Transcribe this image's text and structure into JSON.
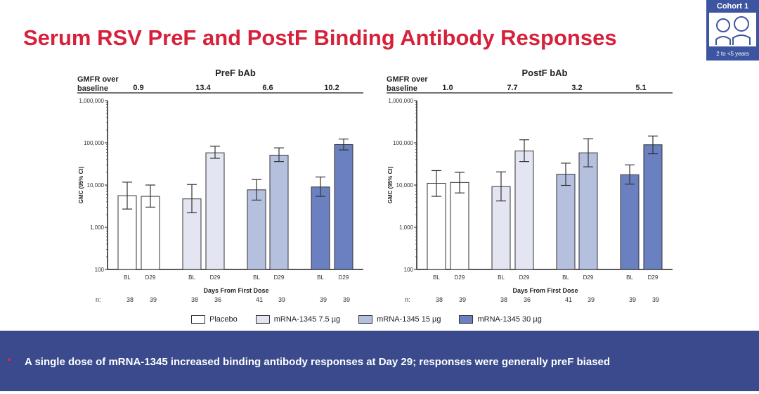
{
  "title": "Serum RSV PreF and PostF Binding Antibody Responses",
  "cohort": {
    "label": "Cohort 1",
    "age": "2 to <5 years",
    "icon": "children-icon"
  },
  "legend": [
    {
      "label": "Placebo",
      "color": "#ffffff"
    },
    {
      "label": "mRNA-1345 7.5 µg",
      "color": "#e3e6f2"
    },
    {
      "label": "mRNA-1345 15 µg",
      "color": "#b5c0df"
    },
    {
      "label": "mRNA-1345 30 µg",
      "color": "#6a80c0"
    }
  ],
  "banner": {
    "text": "A single dose of mRNA-1345 increased binding antibody responses at Day 29; responses were generally preF biased"
  },
  "chart_data": [
    {
      "type": "bar",
      "title": "PreF bAb",
      "gmfr_label": "GMFR over baseline",
      "gmfr": [
        "0.9",
        "13.4",
        "6.6",
        "10.2"
      ],
      "ylabel": "GMC (95% CI)",
      "xlabel": "Days From First Dose",
      "yscale": "log",
      "ylim": [
        100,
        1000000
      ],
      "yticks": [
        "100",
        "1,000",
        "10,000",
        "100,000",
        "1,000,000"
      ],
      "categories": [
        "BL",
        "D29",
        "BL",
        "D29",
        "BL",
        "D29",
        "BL",
        "D29"
      ],
      "groups": [
        "Placebo",
        "mRNA-1345 7.5 µg",
        "mRNA-1345 15 µg",
        "mRNA-1345 30 µg"
      ],
      "n_label": "n:",
      "n": [
        "38",
        "39",
        "38",
        "36",
        "41",
        "39",
        "39",
        "39"
      ],
      "values": [
        5600,
        5400,
        4700,
        58000,
        7700,
        51000,
        9000,
        91000
      ],
      "ci_low": [
        2700,
        3000,
        2200,
        43000,
        4400,
        36000,
        5400,
        68000
      ],
      "ci_high": [
        11700,
        10000,
        10300,
        83000,
        13500,
        76000,
        15500,
        123000
      ]
    },
    {
      "type": "bar",
      "title": "PostF bAb",
      "gmfr_label": "GMFR over baseline",
      "gmfr": [
        "1.0",
        "7.7",
        "3.2",
        "5.1"
      ],
      "ylabel": "GMC (95% CI)",
      "xlabel": "Days From First Dose",
      "yscale": "log",
      "ylim": [
        100,
        1000000
      ],
      "yticks": [
        "100",
        "1,000",
        "10,000",
        "100,000",
        "1,000,000"
      ],
      "categories": [
        "BL",
        "D29",
        "BL",
        "D29",
        "BL",
        "D29",
        "BL",
        "D29"
      ],
      "groups": [
        "Placebo",
        "mRNA-1345 7.5 µg",
        "mRNA-1345 15 µg",
        "mRNA-1345 30 µg"
      ],
      "n_label": "n:",
      "n": [
        "38",
        "39",
        "38",
        "36",
        "41",
        "39",
        "39",
        "39"
      ],
      "values": [
        11000,
        11500,
        9200,
        64000,
        18000,
        58000,
        17500,
        90000
      ],
      "ci_low": [
        5400,
        6500,
        4200,
        36000,
        9800,
        27000,
        10500,
        55000
      ],
      "ci_high": [
        22000,
        20000,
        20500,
        118000,
        33000,
        125000,
        30000,
        145000
      ]
    }
  ]
}
